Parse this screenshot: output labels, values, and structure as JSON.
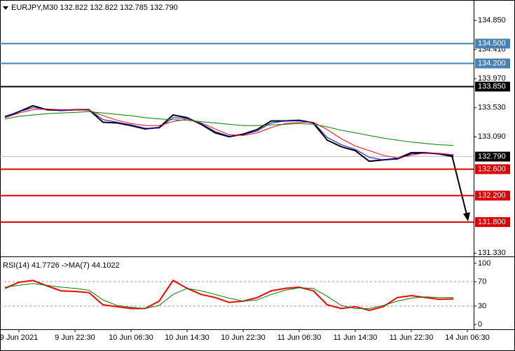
{
  "chart_data": [
    {
      "type": "line",
      "title": "EURJPY,M30  132.822 132.822 132.785 132.790",
      "categories": [
        null,
        "9 Jun 2021",
        null,
        null,
        null,
        "9 Jun 22:30",
        null,
        null,
        null,
        "10 Jun 06:30",
        null,
        null,
        null,
        "10 Jun 14:30",
        null,
        null,
        null,
        "10 Jun 22:30",
        null,
        null,
        null,
        "11 Jun 06:30",
        null,
        null,
        null,
        "11 Jun 14:30",
        null,
        null,
        null,
        "11 Jun 22:30",
        null,
        null,
        null,
        "14 Jun 06:30"
      ],
      "series": [
        {
          "name": "Close",
          "color": "#000000",
          "values": [
            133.385,
            133.47,
            133.56,
            133.5,
            133.49,
            133.5,
            133.5,
            133.31,
            133.3,
            133.26,
            133.21,
            133.23,
            133.42,
            133.38,
            133.28,
            133.15,
            133.09,
            133.13,
            133.2,
            133.33,
            133.33,
            133.34,
            133.3,
            133.04,
            132.94,
            132.88,
            132.72,
            132.74,
            132.76,
            132.85,
            132.85,
            132.83,
            132.79,
            null
          ]
        },
        {
          "name": "MA fast",
          "color": "#0000ff",
          "values": [
            133.4,
            133.47,
            133.53,
            133.51,
            133.49,
            133.5,
            133.5,
            133.35,
            133.31,
            133.27,
            133.22,
            133.22,
            133.38,
            133.37,
            133.29,
            133.17,
            133.1,
            133.12,
            133.18,
            133.3,
            133.33,
            133.33,
            133.31,
            133.08,
            132.97,
            132.9,
            132.78,
            132.74,
            132.75,
            132.83,
            132.84,
            132.83,
            132.81,
            null
          ]
        },
        {
          "name": "MA medium",
          "color": "#ff0000",
          "values": [
            133.38,
            133.45,
            133.5,
            133.51,
            133.5,
            133.5,
            133.49,
            133.41,
            133.34,
            133.29,
            133.26,
            133.26,
            133.32,
            133.36,
            133.3,
            133.21,
            133.12,
            133.11,
            133.15,
            133.23,
            133.29,
            133.31,
            133.31,
            133.2,
            133.06,
            132.95,
            132.88,
            132.81,
            132.77,
            132.81,
            132.85,
            132.84,
            132.82,
            null
          ]
        },
        {
          "name": "MA slow",
          "color": "#008000",
          "values": [
            133.36,
            133.4,
            133.42,
            133.44,
            133.45,
            133.46,
            133.47,
            133.45,
            133.43,
            133.41,
            133.38,
            133.36,
            133.35,
            133.34,
            133.32,
            133.3,
            133.28,
            133.26,
            133.26,
            133.27,
            133.28,
            133.29,
            133.28,
            133.24,
            133.19,
            133.15,
            133.11,
            133.07,
            133.04,
            133.01,
            132.99,
            132.97,
            132.96,
            null
          ]
        }
      ],
      "ylim": [
        131.28,
        135.16
      ],
      "yticks": [
        {
          "value": 134.85,
          "label": "134.850"
        },
        {
          "value": 134.41,
          "label": "134.410"
        },
        {
          "value": 133.97,
          "label": "133.970"
        },
        {
          "value": 133.53,
          "label": "133.530"
        },
        {
          "value": 133.09,
          "label": "133.090"
        },
        {
          "value": 131.33,
          "label": "131.330"
        }
      ],
      "levels": [
        {
          "value": 134.5,
          "label": "134.500",
          "color": "#4682b4"
        },
        {
          "value": 134.2,
          "label": "134.200",
          "color": "#4682b4"
        },
        {
          "value": 133.85,
          "label": "133.850",
          "color": "#000000"
        },
        {
          "value": 132.79,
          "label": "132.790",
          "color": "#c0c0c0",
          "box_color": "#000000"
        },
        {
          "value": 132.6,
          "label": "132.600",
          "color": "#e00000"
        },
        {
          "value": 132.2,
          "label": "132.200",
          "color": "#e00000"
        },
        {
          "value": 131.8,
          "label": "131.800",
          "color": "#e00000"
        }
      ]
    },
    {
      "type": "line",
      "title": "RSI(14) 41.7726 ->MA(7) 44.1022",
      "series": [
        {
          "name": "RSI(14)",
          "color": "#ff0000",
          "values": [
            59,
            69,
            72,
            63,
            55,
            54,
            52,
            32,
            29,
            26,
            26,
            38,
            72,
            59,
            49,
            44,
            36,
            38,
            44,
            55,
            59,
            61,
            55,
            32,
            26,
            29,
            23,
            29,
            44,
            47,
            44,
            41,
            41.8,
            null
          ]
        },
        {
          "name": "MA(7)",
          "color": "#008000",
          "values": [
            61,
            64,
            67,
            64,
            61,
            59,
            56,
            40,
            31,
            28,
            26,
            31,
            49,
            59,
            55,
            49,
            43,
            38,
            40,
            49,
            56,
            60,
            59,
            46,
            31,
            26,
            26,
            31,
            38,
            43,
            45,
            44,
            44.1,
            null
          ]
        }
      ],
      "ylim": [
        -8,
        109
      ],
      "yticks": [
        100,
        70,
        30,
        0
      ],
      "levels": [
        70,
        30
      ]
    }
  ]
}
